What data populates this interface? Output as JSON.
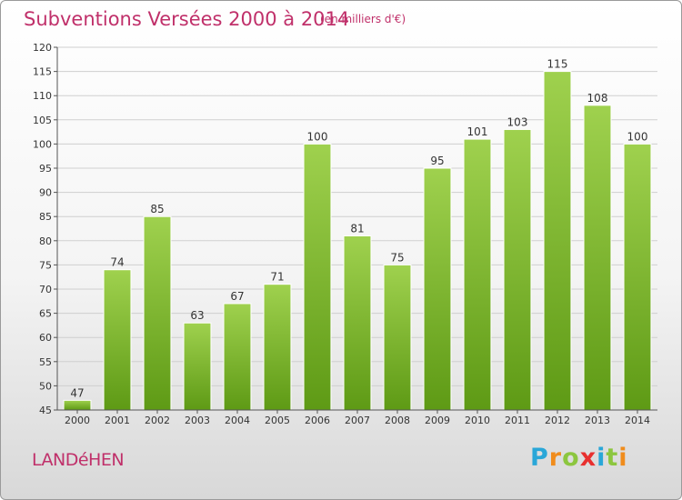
{
  "header": {
    "title": "Subventions Versées 2000 à 2014",
    "unit": "(en milliers d'€)"
  },
  "footer": {
    "town": "LANDéHEN",
    "logo_letters": [
      "P",
      "r",
      "o",
      "x",
      "i",
      "t",
      "i"
    ],
    "logo_colors": [
      "#2aa7d8",
      "#f08c1c",
      "#8cc63f",
      "#e8302f",
      "#2aa7d8",
      "#8cc63f",
      "#f08c1c"
    ]
  },
  "colors": {
    "title": "#c0306a",
    "bar_top": "#9fd14e",
    "bar_bottom": "#5e9a15",
    "grid": "#cfcfcf",
    "axis": "#555555"
  },
  "chart_data": {
    "type": "bar",
    "categories": [
      "2000",
      "2001",
      "2002",
      "2003",
      "2004",
      "2005",
      "2006",
      "2007",
      "2008",
      "2009",
      "2010",
      "2011",
      "2012",
      "2013",
      "2014"
    ],
    "values": [
      47,
      74,
      85,
      63,
      67,
      71,
      100,
      81,
      75,
      95,
      101,
      103,
      115,
      108,
      100
    ],
    "ylim": [
      45,
      120
    ],
    "yticks": [
      45,
      50,
      55,
      60,
      65,
      70,
      75,
      80,
      85,
      90,
      95,
      100,
      105,
      110,
      115,
      120
    ],
    "grid": true,
    "xlabel": "",
    "ylabel": ""
  }
}
